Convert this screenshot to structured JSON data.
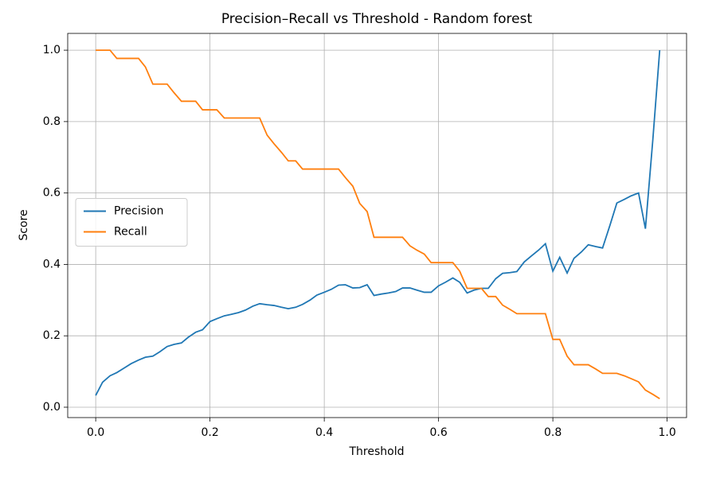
{
  "chart_data": {
    "type": "line",
    "title": "Precision–Recall vs Threshold - Random forest",
    "x_label": "Threshold",
    "y_label": "Score",
    "x": [
      0,
      0.012,
      0.025,
      0.037,
      0.05,
      0.062,
      0.075,
      0.087,
      0.1,
      0.112,
      0.125,
      0.137,
      0.15,
      0.162,
      0.175,
      0.187,
      0.2,
      0.212,
      0.225,
      0.237,
      0.25,
      0.262,
      0.275,
      0.287,
      0.3,
      0.312,
      0.325,
      0.337,
      0.35,
      0.362,
      0.375,
      0.387,
      0.4,
      0.412,
      0.425,
      0.437,
      0.45,
      0.462,
      0.475,
      0.487,
      0.5,
      0.512,
      0.525,
      0.537,
      0.55,
      0.562,
      0.575,
      0.587,
      0.6,
      0.612,
      0.625,
      0.637,
      0.65,
      0.662,
      0.675,
      0.687,
      0.7,
      0.712,
      0.725,
      0.737,
      0.75,
      0.762,
      0.775,
      0.787,
      0.8,
      0.812,
      0.825,
      0.837,
      0.85,
      0.862,
      0.875,
      0.887,
      0.9,
      0.912,
      0.925,
      0.937,
      0.95,
      0.962,
      0.975,
      0.987
    ],
    "series": [
      {
        "name": "Precision",
        "color": "#1f77b4",
        "values": [
          0.033,
          0.07,
          0.088,
          0.097,
          0.11,
          0.122,
          0.132,
          0.14,
          0.143,
          0.155,
          0.17,
          0.176,
          0.18,
          0.196,
          0.21,
          0.217,
          0.24,
          0.248,
          0.256,
          0.26,
          0.265,
          0.272,
          0.283,
          0.29,
          0.287,
          0.285,
          0.28,
          0.276,
          0.28,
          0.288,
          0.3,
          0.314,
          0.322,
          0.33,
          0.342,
          0.343,
          0.334,
          0.335,
          0.343,
          0.313,
          0.317,
          0.32,
          0.324,
          0.334,
          0.334,
          0.328,
          0.322,
          0.322,
          0.34,
          0.35,
          0.362,
          0.35,
          0.32,
          0.328,
          0.333,
          0.333,
          0.36,
          0.375,
          0.377,
          0.38,
          0.407,
          0.423,
          0.44,
          0.458,
          0.381,
          0.42,
          0.376,
          0.417,
          0.435,
          0.455,
          0.45,
          0.446,
          0.51,
          0.572,
          0.582,
          0.592,
          0.6,
          0.5,
          0.75,
          1.0
        ]
      },
      {
        "name": "Recall",
        "color": "#ff7f0e",
        "values": [
          1,
          1,
          1,
          0.977,
          0.977,
          0.977,
          0.977,
          0.953,
          0.905,
          0.905,
          0.905,
          0.881,
          0.857,
          0.857,
          0.857,
          0.833,
          0.833,
          0.833,
          0.81,
          0.81,
          0.81,
          0.81,
          0.81,
          0.81,
          0.762,
          0.738,
          0.714,
          0.69,
          0.69,
          0.667,
          0.667,
          0.667,
          0.667,
          0.667,
          0.667,
          0.643,
          0.619,
          0.571,
          0.548,
          0.476,
          0.476,
          0.476,
          0.476,
          0.476,
          0.452,
          0.44,
          0.429,
          0.405,
          0.405,
          0.405,
          0.405,
          0.381,
          0.333,
          0.333,
          0.333,
          0.31,
          0.31,
          0.286,
          0.274,
          0.262,
          0.262,
          0.262,
          0.262,
          0.262,
          0.19,
          0.19,
          0.143,
          0.119,
          0.119,
          0.119,
          0.107,
          0.095,
          0.095,
          0.095,
          0.088,
          0.08,
          0.071,
          0.048,
          0.036,
          0.024
        ]
      }
    ],
    "xlim": [
      -0.049,
      1.034
    ],
    "ylim": [
      -0.029,
      1.047
    ],
    "xticks": [
      {
        "value": 0,
        "label": "0.0"
      },
      0.2,
      0.4,
      0.6,
      0.8,
      {
        "value": 1,
        "label": "1.0"
      }
    ],
    "yticks": [
      {
        "value": 0,
        "label": "0.0"
      },
      0.2,
      0.4,
      0.6,
      0.8,
      {
        "value": 1,
        "label": "1.0"
      }
    ],
    "grid": true,
    "legend": "center left"
  }
}
